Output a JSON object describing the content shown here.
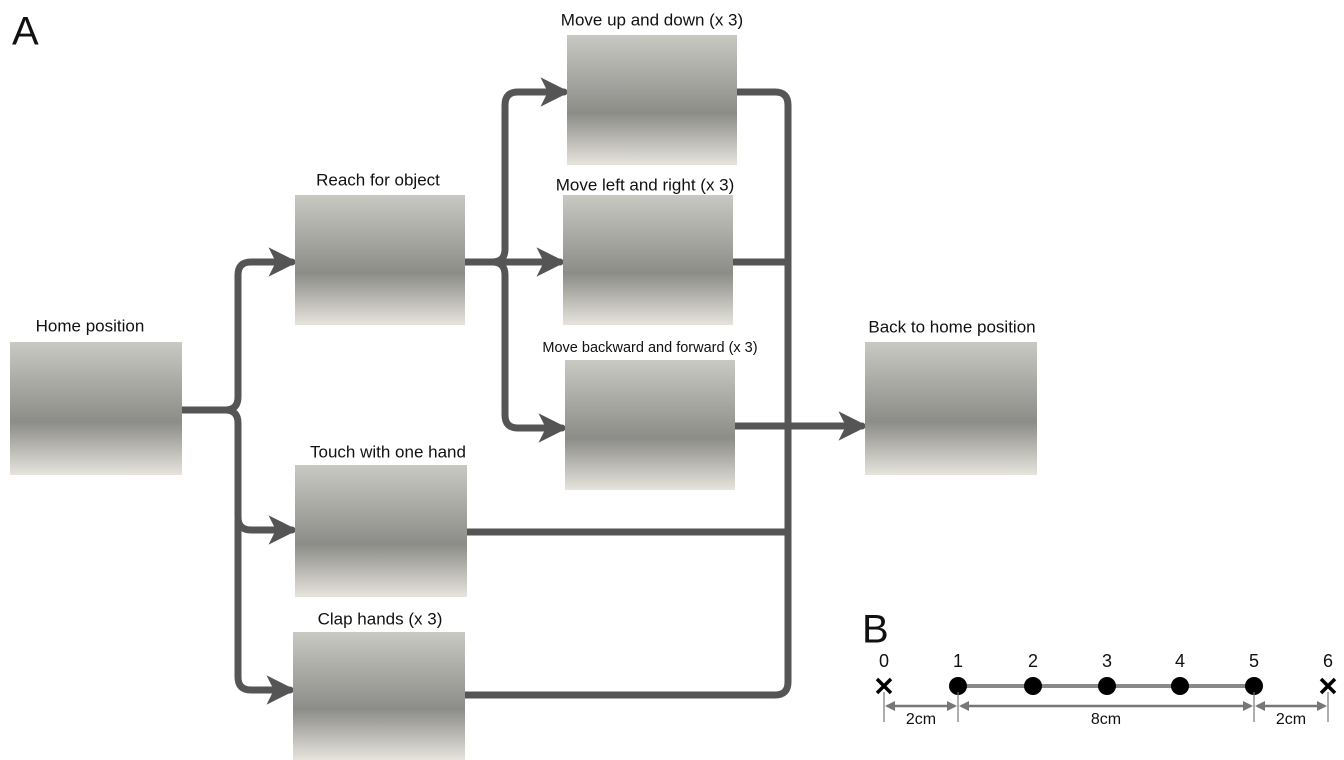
{
  "panels": {
    "a": {
      "label": "A",
      "nodes": [
        {
          "label": "Home position"
        },
        {
          "label": "Reach for object"
        },
        {
          "label": "Move up and down (x 3)"
        },
        {
          "label": "Move left and right (x 3)"
        },
        {
          "label": "Move backward and forward (x 3)"
        },
        {
          "label": "Back to home position"
        },
        {
          "label": "Touch with one hand"
        },
        {
          "label": "Clap hands (x 3)"
        }
      ]
    },
    "b": {
      "label": "B",
      "points": [
        "0",
        "1",
        "2",
        "3",
        "4",
        "5",
        "6"
      ],
      "distances": [
        "2cm",
        "8cm",
        "2cm"
      ]
    }
  }
}
